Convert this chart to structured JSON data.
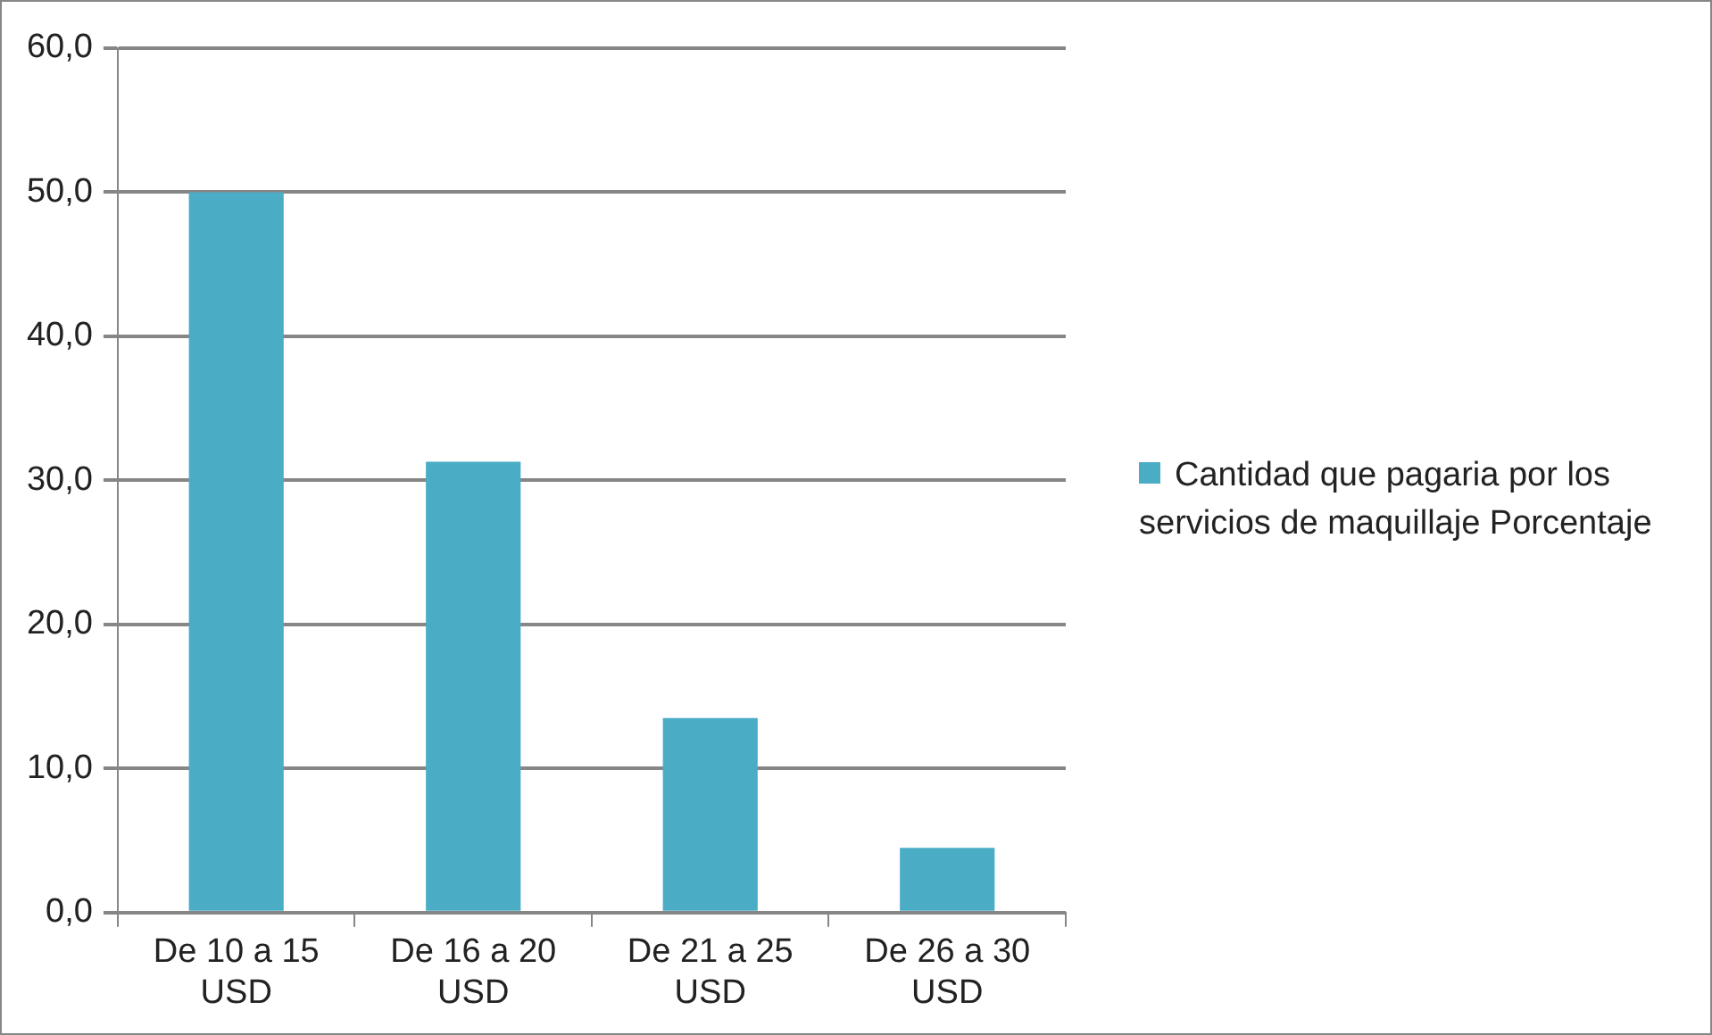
{
  "chart_data": {
    "type": "bar",
    "categories": [
      "De 10 a 15 USD",
      "De 16 a 20 USD",
      "De 21 a 25 USD",
      "De 26 a 30 USD"
    ],
    "series": [
      {
        "name": "Cantidad que pagaria por los servicios de maquillaje Porcentaje",
        "color": "#4bacc6",
        "values": [
          50.0,
          31.3,
          13.5,
          4.5
        ]
      }
    ],
    "ylim": [
      0,
      60
    ],
    "yticks": [
      {
        "value": 0,
        "label": "0,0"
      },
      {
        "value": 10,
        "label": "10,0"
      },
      {
        "value": 20,
        "label": "20,0"
      },
      {
        "value": 30,
        "label": "30,0"
      },
      {
        "value": 40,
        "label": "40,0"
      },
      {
        "value": 50,
        "label": "50,0"
      },
      {
        "value": 60,
        "label": "60,0"
      }
    ],
    "grid": "y",
    "legend": "right"
  }
}
